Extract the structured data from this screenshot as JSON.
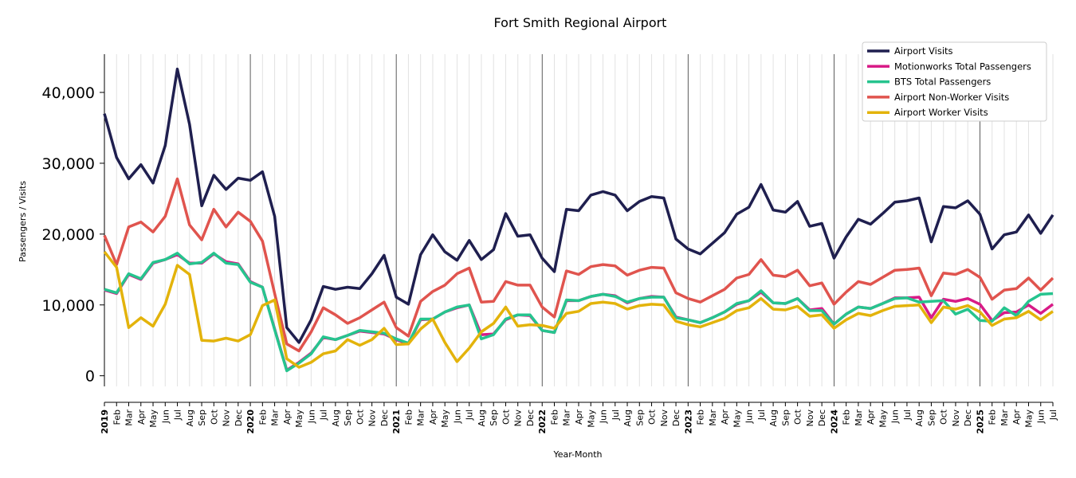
{
  "chart_data": {
    "type": "line",
    "title": "Fort Smith Regional Airport",
    "xlabel": "Year-Month",
    "ylabel": "Passengers / Visits",
    "ylim": [
      -1500,
      45400
    ],
    "yticks": [
      0,
      10000,
      20000,
      30000,
      40000
    ],
    "ytick_labels": [
      "0",
      "10,000",
      "20,000",
      "30,000",
      "40,000"
    ],
    "grid": "vertical monthly lines, darker lines at year starts",
    "legend_position": "top-right",
    "x_start": "2019-01",
    "x_labels": [
      "2019",
      "Feb",
      "Mar",
      "Apr",
      "May",
      "Jun",
      "Jul",
      "Aug",
      "Sep",
      "Oct",
      "Nov",
      "Dec",
      "2020",
      "Feb",
      "Mar",
      "Apr",
      "May",
      "Jun",
      "Jul",
      "Aug",
      "Sep",
      "Oct",
      "Nov",
      "Dec",
      "2021",
      "Feb",
      "Mar",
      "Apr",
      "May",
      "Jun",
      "Jul",
      "Aug",
      "Sep",
      "Oct",
      "Nov",
      "Dec",
      "2022",
      "Feb",
      "Mar",
      "Apr",
      "May",
      "Jun",
      "Jul",
      "Aug",
      "Sep",
      "Oct",
      "Nov",
      "Dec",
      "2023",
      "Feb",
      "Mar",
      "Apr",
      "May",
      "Jun",
      "Jul",
      "Aug",
      "Sep",
      "Oct",
      "Nov",
      "Dec",
      "2024",
      "Feb",
      "Mar",
      "Apr",
      "May",
      "Jun",
      "Jul",
      "Aug",
      "Sep",
      "Oct",
      "Nov",
      "Dec",
      "2025",
      "Feb",
      "Mar",
      "Apr",
      "May",
      "Jun",
      "Jul"
    ],
    "series": [
      {
        "name": "Airport Visits",
        "color": "#1f1f4f",
        "values": [
          37000,
          30800,
          27800,
          29800,
          27200,
          32500,
          43300,
          35500,
          24000,
          28300,
          26300,
          27900,
          27600,
          28800,
          22500,
          6800,
          4700,
          7900,
          12600,
          12200,
          12500,
          12300,
          14400,
          17000,
          11100,
          10100,
          17100,
          19900,
          17500,
          16300,
          19100,
          16400,
          17800,
          22900,
          19700,
          19900,
          16600,
          14700,
          23500,
          23300,
          25500,
          26000,
          25500,
          23300,
          24600,
          25300,
          25100,
          19300,
          17900,
          17200,
          18700,
          20200,
          22800,
          23800,
          27000,
          23400,
          23100,
          24600,
          21100,
          21500,
          16600,
          19600,
          22100,
          21400,
          22900,
          24500,
          24700,
          25100,
          18900,
          23900,
          23700,
          24700,
          22800,
          17900,
          19900,
          20300,
          22700,
          20100,
          22700
        ]
      },
      {
        "name": "Motionworks Total Passengers",
        "color": "#d81b87",
        "values": [
          12100,
          11600,
          14300,
          13600,
          15900,
          16400,
          17100,
          15900,
          15900,
          17200,
          16100,
          15800,
          13300,
          12500,
          6600,
          800,
          1900,
          3200,
          5400,
          5100,
          5700,
          6300,
          6100,
          5900,
          5100,
          4500,
          7900,
          8000,
          9000,
          9600,
          10000,
          5800,
          5900,
          7900,
          8600,
          8500,
          6400,
          6100,
          10600,
          10600,
          11200,
          11500,
          11300,
          10300,
          10900,
          11200,
          11100,
          8300,
          7900,
          7500,
          8200,
          9000,
          10100,
          10600,
          11800,
          10300,
          10200,
          10900,
          9300,
          9500,
          7300,
          8700,
          9700,
          9500,
          10200,
          11000,
          11000,
          11100,
          8200,
          10800,
          10500,
          10900,
          10100,
          7800,
          8900,
          9000,
          10000,
          8800,
          10100
        ]
      },
      {
        "name": "BTS Total Passengers",
        "color": "#26c48e",
        "values": [
          12200,
          11700,
          14400,
          13700,
          16000,
          16400,
          17300,
          15800,
          16000,
          17300,
          15900,
          15700,
          13200,
          12500,
          6500,
          700,
          1800,
          3100,
          5500,
          5100,
          5700,
          6400,
          6200,
          6000,
          5200,
          4600,
          8000,
          8000,
          9000,
          9700,
          10000,
          5200,
          5800,
          8000,
          8600,
          8600,
          6400,
          6100,
          10700,
          10600,
          11200,
          11500,
          11200,
          10400,
          10900,
          11100,
          11100,
          8200,
          7900,
          7500,
          8200,
          9000,
          10200,
          10600,
          12000,
          10300,
          10200,
          10900,
          9200,
          9200,
          7300,
          8700,
          9700,
          9500,
          10200,
          10900,
          11000,
          10400,
          10500,
          10600,
          8700,
          9400,
          7800,
          7700,
          9600,
          8500,
          10500,
          11500,
          11600
        ]
      },
      {
        "name": "Airport Non-Worker Visits",
        "color": "#e0544e",
        "values": [
          19800,
          15700,
          21000,
          21700,
          20300,
          22500,
          27800,
          21300,
          19200,
          23500,
          21000,
          23100,
          21800,
          19000,
          11600,
          4500,
          3500,
          6200,
          9600,
          8600,
          7400,
          8200,
          9300,
          10400,
          6800,
          5600,
          10500,
          11900,
          12800,
          14400,
          15200,
          10400,
          10500,
          13300,
          12800,
          12800,
          9700,
          8300,
          14800,
          14300,
          15400,
          15700,
          15500,
          14200,
          14900,
          15300,
          15200,
          11700,
          10900,
          10400,
          11300,
          12200,
          13800,
          14300,
          16400,
          14200,
          14000,
          14900,
          12700,
          13100,
          10100,
          11800,
          13300,
          12900,
          13900,
          14900,
          15000,
          15200,
          11300,
          14500,
          14300,
          15000,
          13900,
          10800,
          12100,
          12300,
          13800,
          12100,
          13800
        ]
      },
      {
        "name": "Airport Worker Visits",
        "color": "#e3b30b",
        "values": [
          17500,
          15300,
          6800,
          8200,
          7000,
          10100,
          15600,
          14300,
          5000,
          4900,
          5300,
          4900,
          5800,
          9900,
          10700,
          2400,
          1200,
          1900,
          3100,
          3500,
          5100,
          4300,
          5100,
          6700,
          4400,
          4500,
          6600,
          8000,
          4700,
          2000,
          3900,
          6200,
          7400,
          9700,
          7000,
          7200,
          7100,
          6700,
          8800,
          9100,
          10200,
          10400,
          10200,
          9400,
          9900,
          10100,
          10000,
          7700,
          7200,
          6900,
          7500,
          8100,
          9200,
          9600,
          10900,
          9400,
          9300,
          9800,
          8400,
          8600,
          6700,
          7900,
          8800,
          8500,
          9200,
          9800,
          9900,
          10000,
          7500,
          9700,
          9400,
          9900,
          9000,
          7100,
          8000,
          8200,
          9100,
          7900,
          9100
        ]
      }
    ]
  }
}
